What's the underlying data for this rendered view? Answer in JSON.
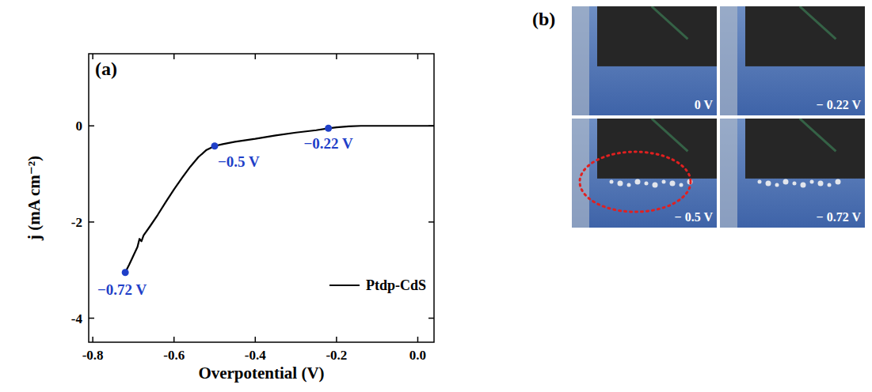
{
  "chart_data": {
    "type": "line",
    "panel_label": "(a)",
    "x_label": "Overpotential (V)",
    "y_label": "j (mA cm⁻²)",
    "xlim": [
      -0.81,
      0.04
    ],
    "ylim": [
      -4.5,
      1.5
    ],
    "xticks": [
      -0.8,
      -0.6,
      -0.4,
      -0.2,
      {
        "value": 0,
        "label": "0.0"
      }
    ],
    "yticks": [
      -4,
      -2,
      0
    ],
    "x": [
      -0.72,
      -0.71,
      -0.7,
      -0.69,
      -0.685,
      -0.68,
      -0.675,
      -0.66,
      -0.64,
      -0.62,
      -0.6,
      -0.58,
      -0.56,
      -0.54,
      -0.52,
      -0.5,
      -0.48,
      -0.45,
      -0.4,
      -0.35,
      -0.3,
      -0.25,
      -0.22,
      -0.2,
      -0.17,
      -0.14,
      -0.1,
      -0.05,
      0,
      0.04
    ],
    "series": [
      {
        "name": "Ptdp-CdS",
        "color": "#000000",
        "values": [
          -3.05,
          -2.88,
          -2.7,
          -2.52,
          -2.35,
          -2.4,
          -2.28,
          -2.1,
          -1.85,
          -1.58,
          -1.32,
          -1.08,
          -0.85,
          -0.65,
          -0.5,
          -0.42,
          -0.38,
          -0.33,
          -0.27,
          -0.2,
          -0.14,
          -0.09,
          -0.05,
          -0.03,
          -0.01,
          0,
          0,
          0,
          0,
          0
        ]
      }
    ],
    "annotations": [
      {
        "x": -0.72,
        "y": -3.05,
        "label": "−0.72 V",
        "color": "#1f3fc8"
      },
      {
        "x": -0.5,
        "y": -0.42,
        "label": "−0.5 V",
        "color": "#1f3fc8"
      },
      {
        "x": -0.22,
        "y": -0.05,
        "label": "−0.22 V",
        "color": "#1f3fc8"
      }
    ],
    "legend": "lower right"
  },
  "photo_panel": {
    "panel_label": "(b)",
    "highlight_color": "#e02020",
    "frames": [
      {
        "label": "0 V"
      },
      {
        "label": "− 0.22 V"
      },
      {
        "label": "− 0.5 V",
        "highlight": true
      },
      {
        "label": "− 0.72 V"
      }
    ]
  }
}
